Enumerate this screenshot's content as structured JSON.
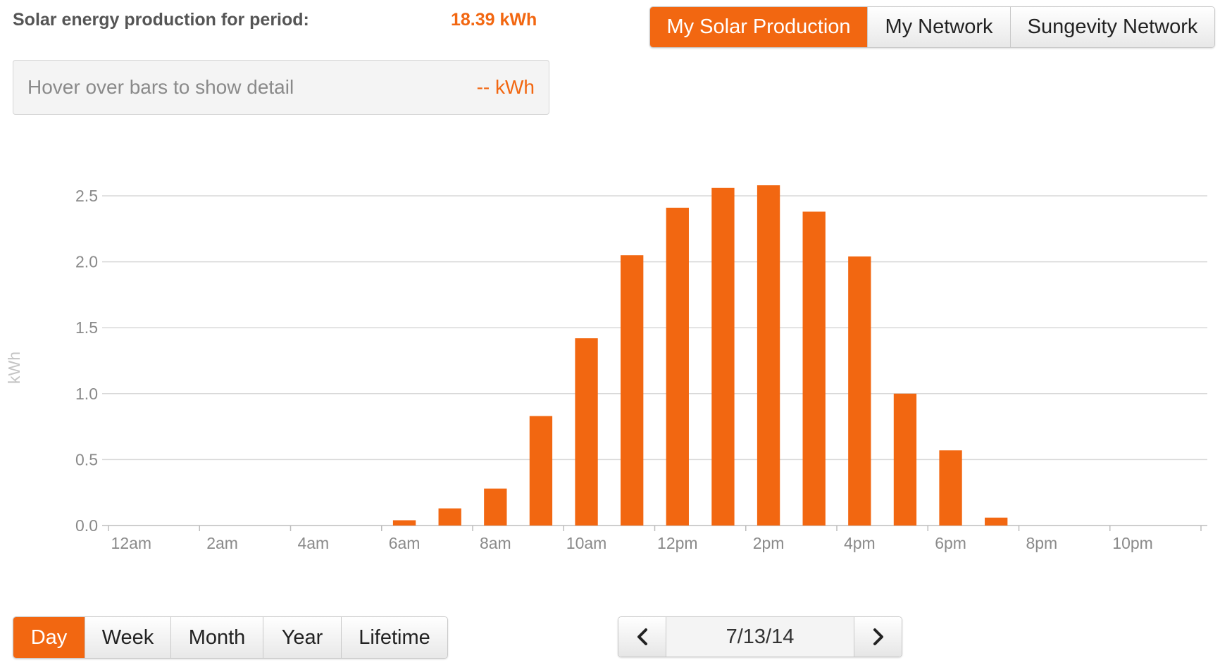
{
  "summary": {
    "title": "Solar energy production for period:",
    "value": "18.39 kWh"
  },
  "detail": {
    "label": "Hover over bars to show detail",
    "value": "-- kWh"
  },
  "network_tabs": [
    {
      "label": "My Solar Production",
      "active": true
    },
    {
      "label": "My Network",
      "active": false
    },
    {
      "label": "Sungevity Network",
      "active": false
    }
  ],
  "period_tabs": [
    {
      "label": "Day",
      "active": true
    },
    {
      "label": "Week",
      "active": false
    },
    {
      "label": "Month",
      "active": false
    },
    {
      "label": "Year",
      "active": false
    },
    {
      "label": "Lifetime",
      "active": false
    }
  ],
  "date_nav": {
    "date": "7/13/14",
    "prev_icon": "chevron-left-icon",
    "next_icon": "chevron-right-icon"
  },
  "colors": {
    "accent": "#f26711",
    "grid": "#d8d8d8",
    "text": "#555555"
  },
  "chart_data": {
    "type": "bar",
    "ylabel": "kWh",
    "ylim": [
      0,
      2.5
    ],
    "yticks": [
      "0.0",
      "0.5",
      "1.0",
      "1.5",
      "2.0",
      "2.5"
    ],
    "xticklabels": [
      "12am",
      "2am",
      "4am",
      "6am",
      "8am",
      "10am",
      "12pm",
      "2pm",
      "4pm",
      "6pm",
      "8pm",
      "10pm"
    ],
    "grid": true,
    "categories": [
      "12am",
      "1am",
      "2am",
      "3am",
      "4am",
      "5am",
      "6am",
      "7am",
      "8am",
      "9am",
      "10am",
      "11am",
      "12pm",
      "1pm",
      "2pm",
      "3pm",
      "4pm",
      "5pm",
      "6pm",
      "7pm",
      "8pm",
      "9pm",
      "10pm",
      "11pm"
    ],
    "values": [
      0,
      0,
      0,
      0,
      0,
      0,
      0.04,
      0.13,
      0.28,
      0.83,
      1.42,
      2.05,
      2.41,
      2.56,
      2.58,
      2.38,
      2.04,
      1.0,
      0.57,
      0.06,
      0,
      0,
      0,
      0
    ]
  }
}
